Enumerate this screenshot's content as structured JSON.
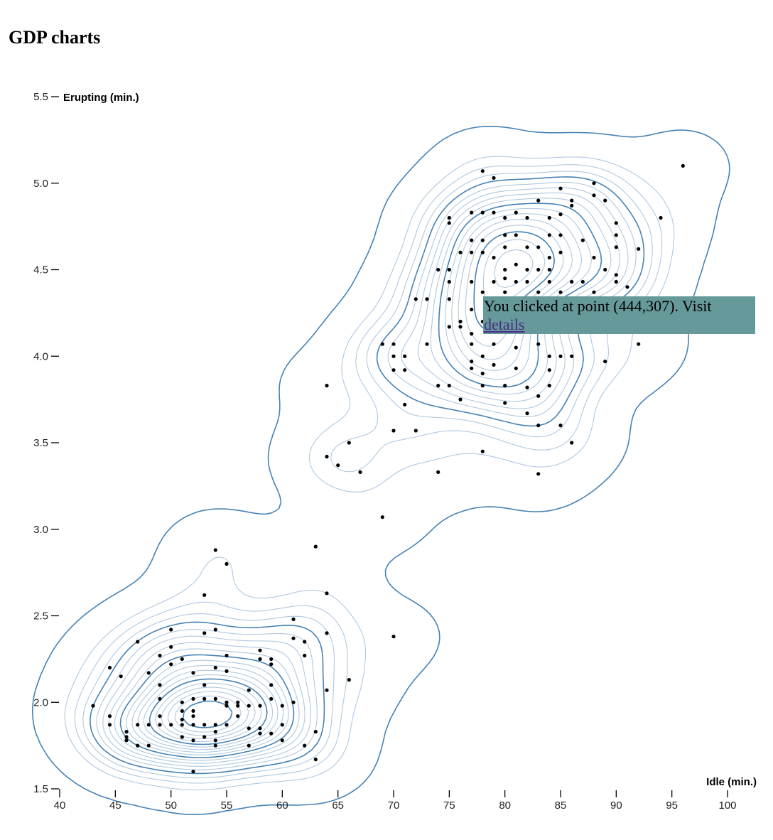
{
  "page": {
    "title": "GDP charts"
  },
  "tooltip": {
    "text": "You clicked at point (444,307). Visit",
    "link_label": "details"
  },
  "colors": {
    "contour_major": "#4682b4",
    "contour_minor": "#b0c8e0",
    "point": "#000000",
    "tooltip_bg": "#669999"
  },
  "chart_data": {
    "type": "scatter",
    "title": "",
    "xlabel": "Idle (min.)",
    "ylabel": "Erupting (min.)",
    "xlim": [
      40,
      100
    ],
    "ylim": [
      1.5,
      5.5
    ],
    "x_ticks": [
      40,
      45,
      50,
      55,
      60,
      65,
      70,
      75,
      80,
      85,
      90,
      95,
      100
    ],
    "y_ticks": [
      "1.5",
      "2.0",
      "2.5",
      "3.0",
      "3.5",
      "4.0",
      "4.5",
      "5.0",
      "5.5"
    ],
    "overlay": "density contours",
    "grid": false,
    "points": [
      [
        43,
        1.98
      ],
      [
        44.5,
        2.2
      ],
      [
        44.5,
        1.92
      ],
      [
        44.5,
        1.87
      ],
      [
        45.5,
        2.15
      ],
      [
        46,
        1.83
      ],
      [
        46,
        1.8
      ],
      [
        46,
        1.78
      ],
      [
        47,
        1.87
      ],
      [
        47,
        1.75
      ],
      [
        47,
        2.35
      ],
      [
        48,
        2.17
      ],
      [
        48,
        1.87
      ],
      [
        48,
        1.75
      ],
      [
        49,
        2.27
      ],
      [
        49,
        2.1
      ],
      [
        49,
        2.02
      ],
      [
        49,
        1.92
      ],
      [
        49,
        1.87
      ],
      [
        50,
        2.42
      ],
      [
        50,
        2.32
      ],
      [
        50,
        2.22
      ],
      [
        50,
        1.87
      ],
      [
        51,
        2.25
      ],
      [
        51,
        2.0
      ],
      [
        51,
        1.95
      ],
      [
        51,
        1.9
      ],
      [
        51,
        1.87
      ],
      [
        51,
        1.8
      ],
      [
        52,
        2.17
      ],
      [
        52,
        2.02
      ],
      [
        52,
        1.95
      ],
      [
        52,
        1.92
      ],
      [
        52,
        1.87
      ],
      [
        52,
        1.78
      ],
      [
        52,
        1.6
      ],
      [
        53,
        2.62
      ],
      [
        53,
        2.4
      ],
      [
        53,
        2.1
      ],
      [
        53,
        2.02
      ],
      [
        53,
        1.87
      ],
      [
        53,
        1.8
      ],
      [
        54,
        2.42
      ],
      [
        54,
        2.2
      ],
      [
        54,
        2.02
      ],
      [
        54,
        1.87
      ],
      [
        54,
        1.83
      ],
      [
        54,
        1.78
      ],
      [
        54,
        1.75
      ],
      [
        55,
        2.27
      ],
      [
        55,
        2.18
      ],
      [
        55,
        2.0
      ],
      [
        55,
        1.98
      ],
      [
        55,
        1.87
      ],
      [
        56,
        2.0
      ],
      [
        56,
        1.98
      ],
      [
        56,
        1.92
      ],
      [
        57,
        2.07
      ],
      [
        57,
        1.98
      ],
      [
        57,
        1.85
      ],
      [
        57,
        1.75
      ],
      [
        58,
        2.3
      ],
      [
        58,
        2.25
      ],
      [
        58,
        1.98
      ],
      [
        58,
        1.85
      ],
      [
        58,
        1.82
      ],
      [
        59,
        2.25
      ],
      [
        59,
        2.22
      ],
      [
        59,
        2.1
      ],
      [
        59,
        2.02
      ],
      [
        59,
        1.82
      ],
      [
        60,
        1.98
      ],
      [
        60,
        1.87
      ],
      [
        60,
        1.78
      ],
      [
        61,
        2.48
      ],
      [
        61,
        2.37
      ],
      [
        61,
        2.0
      ],
      [
        62,
        2.35
      ],
      [
        62,
        2.27
      ],
      [
        62,
        1.75
      ],
      [
        63,
        1.83
      ],
      [
        63,
        1.67
      ],
      [
        64,
        2.63
      ],
      [
        64,
        2.4
      ],
      [
        64,
        2.07
      ],
      [
        66,
        2.13
      ],
      [
        70,
        2.38
      ],
      [
        54,
        2.88
      ],
      [
        55,
        2.8
      ],
      [
        63,
        2.9
      ],
      [
        69,
        3.07
      ],
      [
        67,
        3.33
      ],
      [
        65,
        3.37
      ],
      [
        64,
        3.42
      ],
      [
        64,
        3.83
      ],
      [
        66,
        3.5
      ],
      [
        70,
        3.57
      ],
      [
        72,
        3.57
      ],
      [
        74,
        3.33
      ],
      [
        78,
        3.45
      ],
      [
        83,
        3.32
      ],
      [
        86,
        3.5
      ],
      [
        69,
        4.07
      ],
      [
        70,
        4.07
      ],
      [
        70,
        4.0
      ],
      [
        70,
        3.92
      ],
      [
        71,
        4.0
      ],
      [
        71,
        3.92
      ],
      [
        71,
        3.72
      ],
      [
        72,
        4.33
      ],
      [
        73,
        4.33
      ],
      [
        73,
        4.07
      ],
      [
        74,
        4.5
      ],
      [
        74,
        3.83
      ],
      [
        75,
        4.8
      ],
      [
        75,
        4.77
      ],
      [
        75,
        4.5
      ],
      [
        75,
        4.43
      ],
      [
        75,
        4.33
      ],
      [
        75,
        4.17
      ],
      [
        75,
        3.83
      ],
      [
        76,
        4.6
      ],
      [
        76,
        4.2
      ],
      [
        76,
        4.17
      ],
      [
        76,
        3.75
      ],
      [
        77,
        4.83
      ],
      [
        77,
        4.67
      ],
      [
        77,
        4.6
      ],
      [
        77,
        4.43
      ],
      [
        77,
        4.27
      ],
      [
        77,
        4.13
      ],
      [
        77,
        4.07
      ],
      [
        77,
        3.97
      ],
      [
        77,
        3.93
      ],
      [
        78,
        5.07
      ],
      [
        78,
        4.83
      ],
      [
        78,
        4.67
      ],
      [
        78,
        4.6
      ],
      [
        78,
        4.37
      ],
      [
        78,
        4.2
      ],
      [
        78,
        4.0
      ],
      [
        78,
        3.9
      ],
      [
        78,
        3.83
      ],
      [
        79,
        5.03
      ],
      [
        79,
        4.83
      ],
      [
        79,
        4.57
      ],
      [
        79,
        4.43
      ],
      [
        79,
        4.33
      ],
      [
        79,
        4.25
      ],
      [
        79,
        4.17
      ],
      [
        79,
        4.07
      ],
      [
        79,
        3.95
      ],
      [
        80,
        4.8
      ],
      [
        80,
        4.7
      ],
      [
        80,
        4.63
      ],
      [
        80,
        4.5
      ],
      [
        80,
        4.45
      ],
      [
        80,
        4.37
      ],
      [
        80,
        4.27
      ],
      [
        80,
        4.17
      ],
      [
        80,
        3.83
      ],
      [
        80,
        3.73
      ],
      [
        81,
        4.83
      ],
      [
        81,
        4.7
      ],
      [
        81,
        4.53
      ],
      [
        81,
        4.43
      ],
      [
        81,
        4.23
      ],
      [
        81,
        4.05
      ],
      [
        81,
        3.93
      ],
      [
        82,
        4.8
      ],
      [
        82,
        4.63
      ],
      [
        82,
        4.5
      ],
      [
        82,
        4.43
      ],
      [
        82,
        4.17
      ],
      [
        82,
        3.82
      ],
      [
        82,
        3.67
      ],
      [
        83,
        4.9
      ],
      [
        83,
        4.63
      ],
      [
        83,
        4.5
      ],
      [
        83,
        4.37
      ],
      [
        83,
        4.07
      ],
      [
        83,
        3.77
      ],
      [
        83,
        3.6
      ],
      [
        84,
        4.8
      ],
      [
        84,
        4.7
      ],
      [
        84,
        4.57
      ],
      [
        84,
        4.5
      ],
      [
        84,
        4.43
      ],
      [
        84,
        4.0
      ],
      [
        84,
        3.92
      ],
      [
        84,
        3.83
      ],
      [
        85,
        4.97
      ],
      [
        85,
        4.82
      ],
      [
        85,
        4.7
      ],
      [
        85,
        4.6
      ],
      [
        85,
        4.37
      ],
      [
        85,
        4.0
      ],
      [
        85,
        3.6
      ],
      [
        86,
        4.9
      ],
      [
        86,
        4.87
      ],
      [
        86,
        4.43
      ],
      [
        86,
        4.0
      ],
      [
        87,
        4.67
      ],
      [
        87,
        4.43
      ],
      [
        88,
        5.0
      ],
      [
        88,
        4.93
      ],
      [
        88,
        4.57
      ],
      [
        88,
        4.37
      ],
      [
        89,
        4.9
      ],
      [
        89,
        4.5
      ],
      [
        89,
        3.97
      ],
      [
        90,
        4.77
      ],
      [
        90,
        4.7
      ],
      [
        90,
        4.63
      ],
      [
        90,
        4.47
      ],
      [
        90,
        4.43
      ],
      [
        91,
        4.4
      ],
      [
        92,
        4.62
      ],
      [
        92,
        4.07
      ],
      [
        94,
        4.8
      ],
      [
        96,
        5.1
      ]
    ]
  }
}
